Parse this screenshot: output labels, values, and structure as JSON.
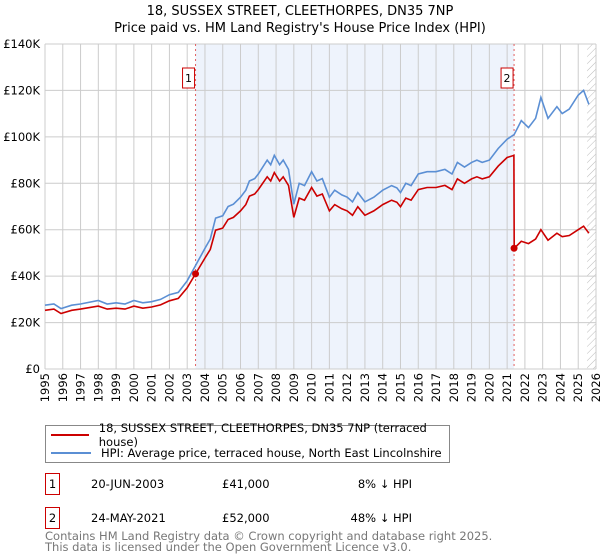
{
  "chart_data": {
    "type": "line",
    "title": "18, SUSSEX STREET, CLEETHORPES, DN35 7NP",
    "subtitle": "Price paid vs. HM Land Registry's House Price Index (HPI)",
    "xlim": [
      1995,
      2026
    ],
    "ylim": [
      0,
      140000
    ],
    "y_ticks": [
      {
        "v": 0,
        "label": "£0"
      },
      {
        "v": 20000,
        "label": "£20K"
      },
      {
        "v": 40000,
        "label": "£40K"
      },
      {
        "v": 60000,
        "label": "£60K"
      },
      {
        "v": 80000,
        "label": "£80K"
      },
      {
        "v": 100000,
        "label": "£100K"
      },
      {
        "v": 120000,
        "label": "£120K"
      },
      {
        "v": 140000,
        "label": "£140K"
      }
    ],
    "x_ticks": [
      "1995",
      "1996",
      "1997",
      "1998",
      "1999",
      "2000",
      "2001",
      "2002",
      "2003",
      "2004",
      "2005",
      "2006",
      "2007",
      "2008",
      "2009",
      "2010",
      "2011",
      "2012",
      "2013",
      "2014",
      "2015",
      "2016",
      "2017",
      "2018",
      "2019",
      "2020",
      "2021",
      "2022",
      "2023",
      "2024",
      "2025",
      "2026"
    ],
    "grid": true,
    "shaded_range": [
      2003.47,
      2021.39
    ],
    "hatched_from": 2025.5,
    "series": [
      {
        "name": "18, SUSSEX STREET, CLEETHORPES, DN35 7NP (terraced house)",
        "color": "#cc0000",
        "x": [
          1995,
          1995.5,
          1995.9,
          1996.5,
          1997,
          1998,
          1998.5,
          1999,
          1999.5,
          2000,
          2000.5,
          2001,
          2001.5,
          2002,
          2002.5,
          2003,
          2003.5,
          2004,
          2004.3,
          2004.6,
          2005,
          2005.3,
          2005.6,
          2006,
          2006.3,
          2006.5,
          2006.8,
          2007,
          2007.5,
          2007.7,
          2007.9,
          2008.2,
          2008.4,
          2008.7,
          2009,
          2009.3,
          2009.6,
          2010,
          2010.3,
          2010.6,
          2011,
          2011.3,
          2011.7,
          2012,
          2012.3,
          2012.6,
          2013,
          2013.5,
          2014,
          2014.5,
          2014.8,
          2015,
          2015.3,
          2015.6,
          2016,
          2016.5,
          2017,
          2017.5,
          2017.9,
          2018.2,
          2018.6,
          2019,
          2019.3,
          2019.6,
          2020,
          2020.5,
          2021,
          2021.38,
          2021.4,
          2021.8,
          2022.2,
          2022.6,
          2022.9,
          2023.3,
          2023.8,
          2024.1,
          2024.5,
          2025,
          2025.3,
          2025.6
        ],
        "y": [
          25.3,
          25.8,
          23.9,
          25.3,
          25.8,
          27.1,
          25.8,
          26.2,
          25.8,
          27.1,
          26.2,
          26.7,
          27.6,
          29.4,
          30.4,
          35,
          41.4,
          47.8,
          51.5,
          59.8,
          60.7,
          64.4,
          65.3,
          68.1,
          70.8,
          74.5,
          75.4,
          77.3,
          82.8,
          81,
          84.6,
          81,
          82.8,
          79.1,
          65.3,
          73.6,
          72.7,
          78.2,
          74.5,
          75.4,
          68.1,
          70.8,
          69,
          68.1,
          66.2,
          69.9,
          66.2,
          68.1,
          70.8,
          72.7,
          71.8,
          69.9,
          73.6,
          72.7,
          77.3,
          78.2,
          78.2,
          79.1,
          77.3,
          81.9,
          80,
          81.9,
          82.8,
          81.9,
          82.8,
          87.4,
          91.1,
          92,
          52,
          55,
          54,
          56,
          60,
          55.5,
          58.5,
          57,
          57.5,
          60,
          61.5,
          58.5
        ],
        "y_unit": "£K"
      },
      {
        "name": "HPI: Average price, terraced house, North East Lincolnshire",
        "color": "#5b8fd4",
        "x": [
          1995,
          1995.5,
          1995.9,
          1996.5,
          1997,
          1998,
          1998.5,
          1999,
          1999.5,
          2000,
          2000.5,
          2001,
          2001.5,
          2002,
          2002.5,
          2003,
          2003.5,
          2004,
          2004.3,
          2004.6,
          2005,
          2005.3,
          2005.6,
          2006,
          2006.3,
          2006.5,
          2006.8,
          2007,
          2007.5,
          2007.7,
          2007.9,
          2008.2,
          2008.4,
          2008.7,
          2009,
          2009.3,
          2009.6,
          2010,
          2010.3,
          2010.6,
          2011,
          2011.3,
          2011.7,
          2012,
          2012.3,
          2012.6,
          2013,
          2013.5,
          2014,
          2014.5,
          2014.8,
          2015,
          2015.3,
          2015.6,
          2016,
          2016.5,
          2017,
          2017.5,
          2017.9,
          2018.2,
          2018.6,
          2019,
          2019.3,
          2019.6,
          2020,
          2020.5,
          2021,
          2021.4,
          2021.8,
          2022.2,
          2022.6,
          2022.9,
          2023.3,
          2023.8,
          2024.1,
          2024.5,
          2025,
          2025.3,
          2025.6
        ],
        "y": [
          27.5,
          28,
          26,
          27.5,
          28,
          29.5,
          28,
          28.5,
          28,
          29.5,
          28.5,
          29,
          30,
          32,
          33,
          38,
          45,
          52,
          56,
          65,
          66,
          70,
          71,
          74,
          77,
          81,
          82,
          84,
          90,
          88,
          92,
          88,
          90,
          86,
          71,
          80,
          79,
          85,
          81,
          82,
          74,
          77,
          75,
          74,
          72,
          76,
          72,
          74,
          77,
          79,
          78,
          76,
          80,
          79,
          84,
          85,
          85,
          86,
          84,
          89,
          87,
          89,
          90,
          89,
          90,
          95,
          99,
          101,
          107,
          104,
          108,
          117,
          108,
          113,
          110,
          112,
          118,
          120,
          114
        ],
        "y_unit": "£K"
      }
    ],
    "sales": [
      {
        "label": "1",
        "x": 2003.47,
        "value": 41000,
        "date": "20-JUN-2003",
        "price": "£41,000",
        "hpi": "8% ↓ HPI"
      },
      {
        "label": "2",
        "x": 2021.39,
        "value": 52000,
        "date": "24-MAY-2021",
        "price": "£52,000",
        "hpi": "48% ↓ HPI"
      }
    ]
  },
  "footer": {
    "line1": "Contains HM Land Registry data © Crown copyright and database right 2025.",
    "line2": "This data is licensed under the Open Government Licence v3.0."
  }
}
